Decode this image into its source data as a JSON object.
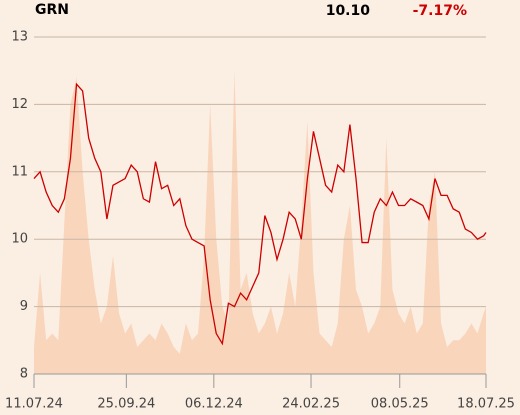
{
  "chart_data": {
    "type": "line",
    "title": "GRN",
    "price": "10.10",
    "change": "-7.17%",
    "change_color": "#cc0000",
    "x": [
      "11.07.24",
      "16.07.24",
      "21.07.24",
      "26.07.24",
      "31.07.24",
      "05.08.24",
      "10.08.24",
      "15.08.24",
      "20.08.24",
      "25.08.24",
      "30.08.24",
      "04.09.24",
      "09.09.24",
      "14.09.24",
      "19.09.24",
      "24.09.24",
      "29.09.24",
      "04.10.24",
      "09.10.24",
      "14.10.24",
      "19.10.24",
      "24.10.24",
      "29.10.24",
      "03.11.24",
      "08.11.24",
      "13.11.24",
      "18.11.24",
      "23.11.24",
      "28.11.24",
      "03.12.24",
      "08.12.24",
      "13.12.24",
      "18.12.24",
      "23.12.24",
      "28.12.24",
      "02.01.25",
      "07.01.25",
      "12.01.25",
      "17.01.25",
      "22.01.25",
      "27.01.25",
      "01.02.25",
      "06.02.25",
      "11.02.25",
      "16.02.25",
      "21.02.25",
      "26.02.25",
      "03.03.25",
      "08.03.25",
      "13.03.25",
      "18.03.25",
      "23.03.25",
      "28.03.25",
      "02.04.25",
      "07.04.25",
      "12.04.25",
      "17.04.25",
      "22.04.25",
      "27.04.25",
      "02.05.25",
      "07.05.25",
      "12.05.25",
      "17.05.25",
      "22.05.25",
      "27.05.25",
      "01.06.25",
      "06.06.25",
      "11.06.25",
      "16.06.25",
      "21.06.25",
      "26.06.25",
      "01.07.25",
      "06.07.25",
      "11.07.25",
      "16.07.25",
      "18.07.25"
    ],
    "series": [
      {
        "name": "GRN",
        "color": "#cc0000",
        "values": [
          10.9,
          11.0,
          10.7,
          10.5,
          10.4,
          10.6,
          11.2,
          12.3,
          12.2,
          11.5,
          11.2,
          11.0,
          10.3,
          10.8,
          10.85,
          10.9,
          11.1,
          11.0,
          10.6,
          10.55,
          11.15,
          10.75,
          10.8,
          10.5,
          10.6,
          10.2,
          10.0,
          9.95,
          9.9,
          9.1,
          8.6,
          8.45,
          9.05,
          9.0,
          9.2,
          9.1,
          9.3,
          9.5,
          10.35,
          10.1,
          9.7,
          10.0,
          10.4,
          10.3,
          10.0,
          10.9,
          11.6,
          11.2,
          10.8,
          10.7,
          11.1,
          11.0,
          11.7,
          10.9,
          9.95,
          9.95,
          10.4,
          10.6,
          10.5,
          10.7,
          10.5,
          10.5,
          10.6,
          10.55,
          10.5,
          10.3,
          10.9,
          10.65,
          10.65,
          10.45,
          10.4,
          10.15,
          10.1,
          10.0,
          10.05,
          10.1
        ]
      },
      {
        "name": "Volume",
        "color": "#f9d5bc",
        "axis": "y2",
        "values": [
          8,
          30,
          10,
          12,
          10,
          45,
          80,
          88,
          60,
          40,
          25,
          15,
          20,
          35,
          18,
          12,
          15,
          8,
          10,
          12,
          10,
          15,
          12,
          8,
          6,
          15,
          10,
          12,
          35,
          80,
          40,
          20,
          15,
          90,
          25,
          30,
          18,
          12,
          15,
          20,
          12,
          18,
          30,
          20,
          45,
          75,
          30,
          12,
          10,
          8,
          15,
          40,
          50,
          25,
          20,
          12,
          15,
          20,
          70,
          25,
          18,
          15,
          20,
          12,
          15,
          50,
          60,
          15,
          8,
          10,
          10,
          12,
          15,
          12,
          18,
          20
        ]
      }
    ],
    "xlim": [
      "11.07.24",
      "18.07.25"
    ],
    "xticks": [
      "11.07.24",
      "25.09.24",
      "06.12.24",
      "24.02.25",
      "08.05.25",
      "18.07.25"
    ],
    "ylim": [
      8,
      13
    ],
    "yticks": [
      8,
      9,
      10,
      11,
      12,
      13
    ],
    "y2lim": [
      0,
      100
    ],
    "grid": true
  }
}
